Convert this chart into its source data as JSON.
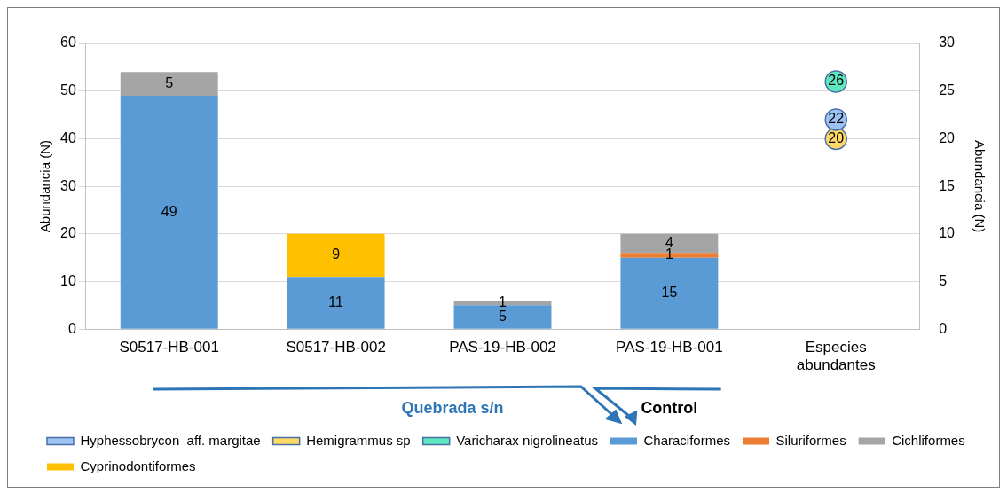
{
  "chart_data": {
    "type": "bar",
    "stacked": true,
    "ylabel": "Abundancia (N)",
    "y2label": "Abundancia (N)",
    "categories": [
      "S0517-HB-001",
      "S0517-HB-002",
      "PAS-19-HB-002",
      "PAS-19-HB-001",
      "Especies abundantes"
    ],
    "series": [
      {
        "name": "Characiformes",
        "color": "#5b9bd5",
        "values": [
          49,
          11,
          5,
          15,
          null
        ]
      },
      {
        "name": "Siluriformes",
        "color": "#ed7d31",
        "values": [
          null,
          null,
          null,
          1,
          null
        ]
      },
      {
        "name": "Cichliformes",
        "color": "#a5a5a5",
        "values": [
          5,
          null,
          1,
          4,
          null
        ]
      },
      {
        "name": "Cyprinodontiformes",
        "color": "#ffc000",
        "values": [
          null,
          9,
          null,
          null,
          null
        ]
      },
      {
        "name": "Hyphessobrycon  aff. margitae",
        "type": "scatter",
        "axis": "y2",
        "color": "#9dc3f5",
        "x": [
          "Especies abundantes"
        ],
        "values": [
          22
        ]
      },
      {
        "name": "Hemigrammus sp",
        "type": "scatter",
        "axis": "y2",
        "color": "#ffd966",
        "x": [
          "Especies abundantes"
        ],
        "values": [
          20
        ]
      },
      {
        "name": "Varicharax nigrolineatus",
        "type": "scatter",
        "axis": "y2",
        "color": "#5fe8c0",
        "x": [
          "Especies abundantes"
        ],
        "values": [
          26
        ]
      }
    ],
    "marker": "circle",
    "data_labels": true,
    "grid": "y",
    "legend": "bottom",
    "ylim": [
      0,
      60
    ],
    "yticks": [
      0,
      10,
      20,
      30,
      40,
      50,
      60
    ],
    "y2lim": [
      0,
      30
    ],
    "y2ticks": [
      0,
      5,
      10,
      15,
      20,
      25,
      30
    ],
    "annotations": [
      "Quebrada s/n",
      "Control"
    ]
  }
}
